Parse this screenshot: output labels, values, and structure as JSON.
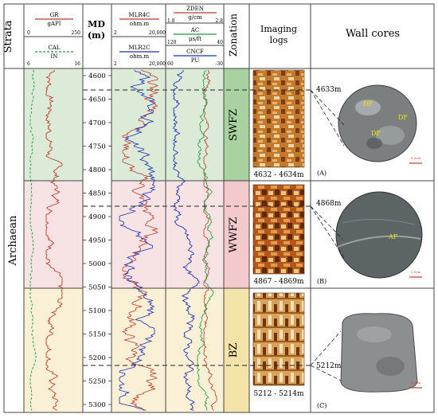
{
  "header": {
    "strata": "Strata",
    "md": "MD",
    "md_unit": "(m)",
    "zonation": "Zonation",
    "imaging": "Imaging",
    "imaging2": "logs",
    "wallcores": "Wall cores"
  },
  "track1": {
    "gr": "GR",
    "gr_unit": "gAPI",
    "gr_min": "0",
    "gr_max": "250",
    "cal": "CAL",
    "cal_unit": "IN",
    "cal_min": "6",
    "cal_max": "16",
    "gr_color": "#c0392b",
    "cal_color": "#1a9b3a"
  },
  "track3": {
    "mlr4c": "MLR4C",
    "mlr4c_unit": "ohm.m",
    "mlr2c": "MLR2C",
    "mlr2c_unit": "ohm.m",
    "min": "2",
    "max": "20,000",
    "mlr4c_color": "#c0392b",
    "mlr2c_color": "#1f2fb5"
  },
  "track4": {
    "zden": "ZDEN",
    "zden_unit": "g/cm",
    "zden_min": "1.8",
    "zden_max": "2.8",
    "ac": "AC",
    "ac_unit": "μs/ft",
    "ac_min": "120",
    "ac_max": "40",
    "cncf": "CNCF",
    "cncf_unit": "PU",
    "cncf_min": "60",
    "cncf_max": "-30",
    "zden_color": "#c0392b",
    "ac_color": "#1a9b3a",
    "cncf_color": "#1f2fb5"
  },
  "strata_label": "Archaean",
  "depth_ticks": [
    "4600",
    "4650",
    "4700",
    "4750",
    "4800",
    "4850",
    "4900",
    "4950",
    "5000",
    "5050",
    "5100",
    "5150",
    "5200",
    "5250",
    "5300"
  ],
  "zones": [
    {
      "name": "SWFZ",
      "color": "#dcead8",
      "bar": "#a8d3a0"
    },
    {
      "name": "WWFZ",
      "color": "#f7e3e3",
      "bar": "#f3c9cc"
    },
    {
      "name": "BZ",
      "color": "#f9f0d6",
      "bar": "#f3e3a8"
    }
  ],
  "imaging": [
    {
      "caption": "4632 - 4634m"
    },
    {
      "caption": "4867 - 4869m"
    },
    {
      "caption": "5212 - 5214m"
    }
  ],
  "cores": [
    {
      "depth": "4633m",
      "tag": "(A)",
      "labels": [
        "DF",
        "DF",
        "DF"
      ],
      "scale": "0.5cm"
    },
    {
      "depth": "4868m",
      "tag": "(B)",
      "labels": [
        "AF"
      ],
      "scale": "0.5cm"
    },
    {
      "depth": "5212m",
      "tag": "(C)",
      "labels": [],
      "scale": "0.5cm"
    }
  ]
}
